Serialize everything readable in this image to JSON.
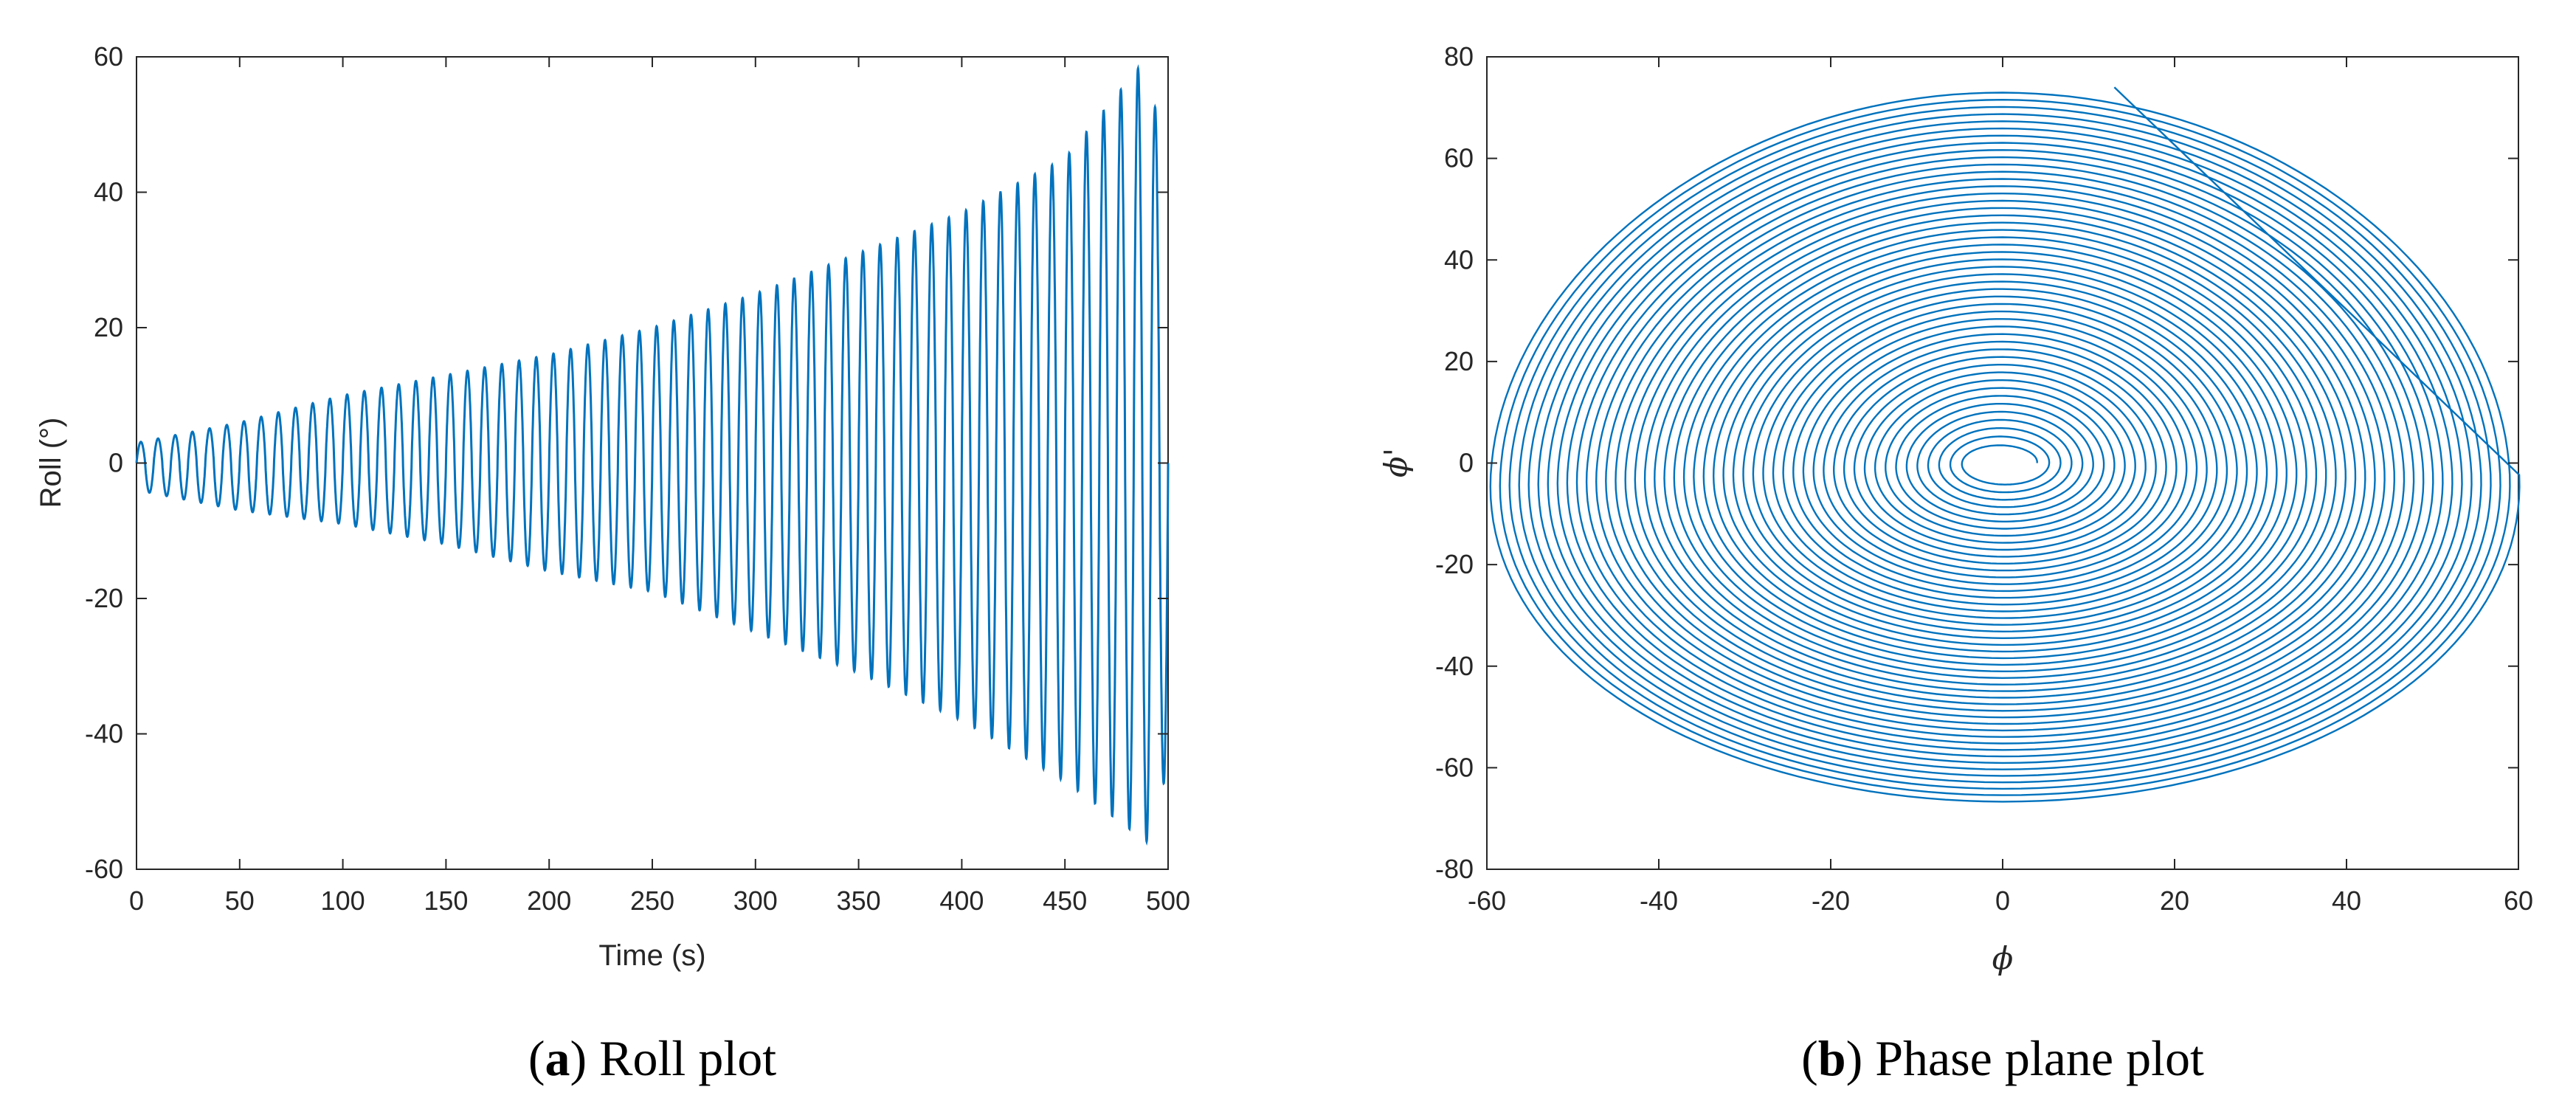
{
  "colors": {
    "line": "#0072BD",
    "axes": "#262626",
    "background": "#ffffff"
  },
  "captions": {
    "a": {
      "open": "(",
      "letter": "a",
      "text": ") Roll plot"
    },
    "b": {
      "open": "(",
      "letter": "b",
      "text": ") Phase plane plot"
    }
  },
  "chart_data": [
    {
      "type": "line",
      "title": "",
      "xlabel": "Time (s)",
      "ylabel": "Roll (°)",
      "xlim": [
        0,
        500
      ],
      "ylim": [
        -60,
        60
      ],
      "xticks": [
        "0",
        "50",
        "100",
        "150",
        "200",
        "250",
        "300",
        "350",
        "400",
        "450",
        "500"
      ],
      "yticks": [
        "-60",
        "-40",
        "-20",
        "0",
        "20",
        "40",
        "60"
      ],
      "grid": false,
      "series": [
        {
          "description": "growing oscillation, approx. 60 cycles",
          "envelope_t": [
            0,
            50,
            100,
            150,
            200,
            250,
            300,
            350,
            400,
            450,
            490,
            500
          ],
          "envelope_max": [
            3,
            6,
            10,
            13,
            16,
            20,
            25,
            31,
            37,
            45,
            60,
            40
          ],
          "envelope_min": [
            -4,
            -7,
            -9,
            -12,
            -16,
            -19,
            -25,
            -31,
            -38,
            -47,
            -56,
            -45
          ]
        }
      ]
    },
    {
      "type": "line",
      "title": "",
      "xlabel": "ϕ",
      "ylabel": "ϕ'",
      "xlim": [
        -60,
        60
      ],
      "ylim": [
        -80,
        80
      ],
      "xticks": [
        "-60",
        "-40",
        "-20",
        "0",
        "20",
        "40",
        "60"
      ],
      "yticks": [
        "-80",
        "-60",
        "-40",
        "-20",
        "0",
        "20",
        "40",
        "60",
        "80"
      ],
      "grid": false,
      "series": [
        {
          "description": "phase-plane trajectory spiraling outward",
          "start_point": [
            0,
            0
          ],
          "end_point": [
            13,
            74
          ],
          "max_abs_x": 60,
          "y_range": [
            -67,
            74
          ]
        }
      ]
    }
  ]
}
